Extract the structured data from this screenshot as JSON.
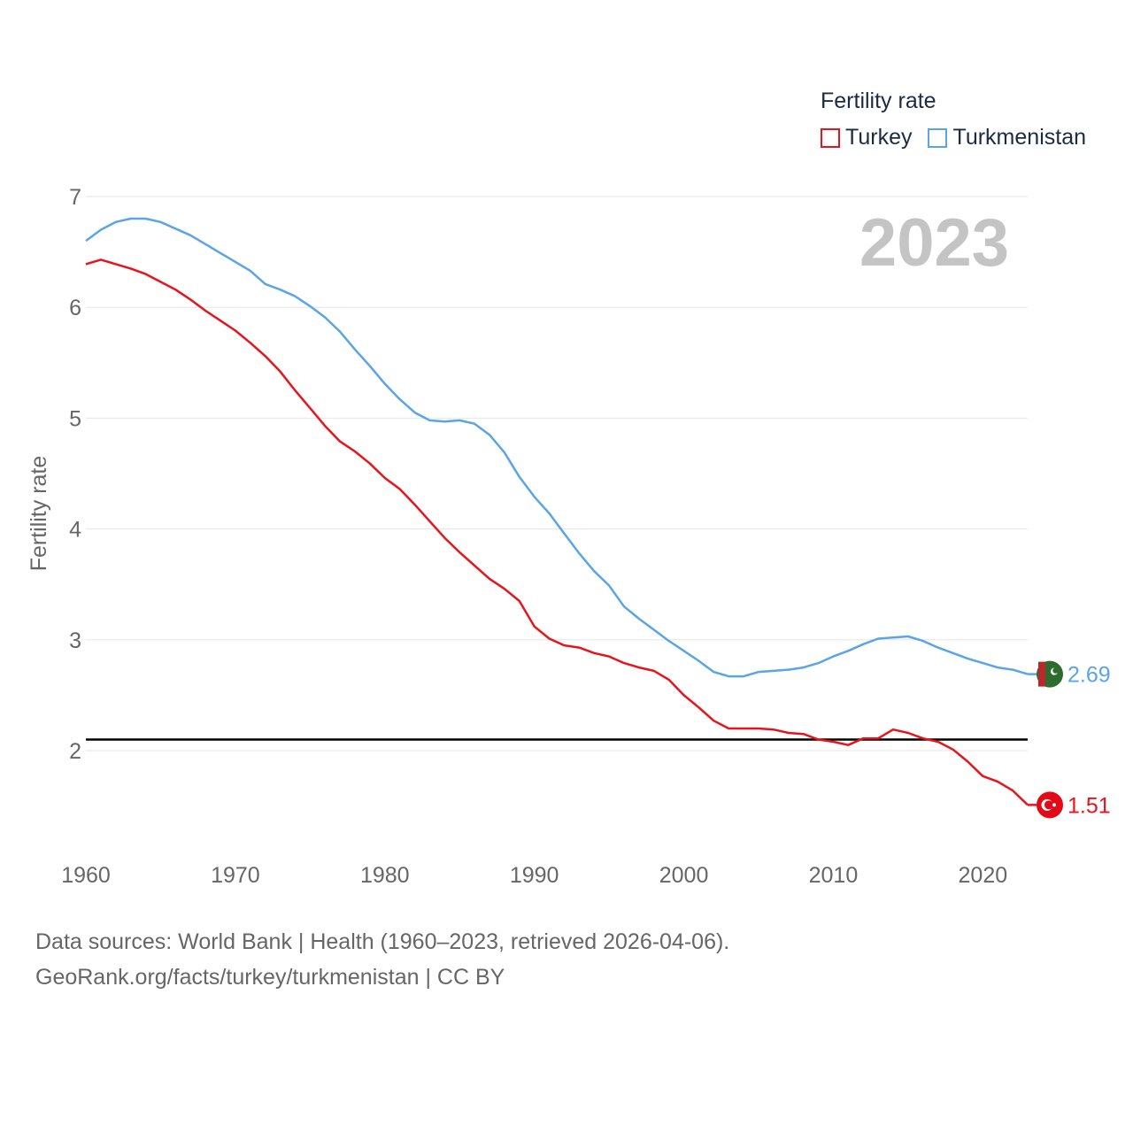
{
  "legend": {
    "title": "Fertility rate",
    "items": [
      {
        "label": "Turkey",
        "color": "#e8141b"
      },
      {
        "label": "Turkmenistan",
        "color": "#5ba4e6"
      }
    ]
  },
  "footer": {
    "line1": "Data sources: World Bank | Health (1960–2023, retrieved 2026-04-06).",
    "line2": "GeoRank.org/facts/turkey/turkmenistan | CC BY"
  },
  "chart_data": {
    "type": "line",
    "title": "Fertility rate",
    "year_label": "2023",
    "ylabel": "Fertility rate",
    "xlabel": "",
    "xlim": [
      1960,
      2023
    ],
    "ylim": [
      1.1,
      7.1
    ],
    "yticks": [
      2,
      3,
      4,
      5,
      6,
      7
    ],
    "xticks": [
      1960,
      1970,
      1980,
      1990,
      2000,
      2010,
      2020
    ],
    "reference_line": 2.1,
    "x": [
      1960,
      1961,
      1962,
      1963,
      1964,
      1965,
      1966,
      1967,
      1968,
      1969,
      1970,
      1971,
      1972,
      1973,
      1974,
      1975,
      1976,
      1977,
      1978,
      1979,
      1980,
      1981,
      1982,
      1983,
      1984,
      1985,
      1986,
      1987,
      1988,
      1989,
      1990,
      1991,
      1992,
      1993,
      1994,
      1995,
      1996,
      1997,
      1998,
      1999,
      2000,
      2001,
      2002,
      2003,
      2004,
      2005,
      2006,
      2007,
      2008,
      2009,
      2010,
      2011,
      2012,
      2013,
      2014,
      2015,
      2016,
      2017,
      2018,
      2019,
      2020,
      2021,
      2022,
      2023
    ],
    "series": [
      {
        "name": "Turkey",
        "color": "#e8141b",
        "end_label": "1.51",
        "values": [
          6.39,
          6.43,
          6.39,
          6.35,
          6.3,
          6.23,
          6.16,
          6.07,
          5.97,
          5.88,
          5.79,
          5.68,
          5.56,
          5.42,
          5.25,
          5.09,
          4.93,
          4.79,
          4.7,
          4.59,
          4.46,
          4.36,
          4.22,
          4.07,
          3.92,
          3.79,
          3.67,
          3.55,
          3.46,
          3.35,
          3.12,
          3.01,
          2.95,
          2.93,
          2.88,
          2.85,
          2.79,
          2.75,
          2.72,
          2.64,
          2.5,
          2.39,
          2.27,
          2.2,
          2.2,
          2.2,
          2.19,
          2.16,
          2.15,
          2.1,
          2.08,
          2.05,
          2.11,
          2.11,
          2.19,
          2.16,
          2.11,
          2.08,
          2.01,
          1.9,
          1.77,
          1.72,
          1.64,
          1.51
        ]
      },
      {
        "name": "Turkmenistan",
        "color": "#5ba4e6",
        "end_label": "2.69",
        "values": [
          6.6,
          6.7,
          6.77,
          6.8,
          6.8,
          6.77,
          6.71,
          6.65,
          6.57,
          6.49,
          6.41,
          6.33,
          6.21,
          6.16,
          6.1,
          6.01,
          5.91,
          5.78,
          5.62,
          5.47,
          5.31,
          5.17,
          5.05,
          4.98,
          4.97,
          4.98,
          4.95,
          4.85,
          4.69,
          4.47,
          4.29,
          4.14,
          3.96,
          3.78,
          3.62,
          3.49,
          3.3,
          3.19,
          3.09,
          2.99,
          2.9,
          2.81,
          2.71,
          2.67,
          2.67,
          2.71,
          2.72,
          2.73,
          2.75,
          2.79,
          2.85,
          2.9,
          2.96,
          3.01,
          3.02,
          3.03,
          2.99,
          2.93,
          2.88,
          2.83,
          2.79,
          2.75,
          2.73,
          2.69
        ]
      }
    ]
  }
}
